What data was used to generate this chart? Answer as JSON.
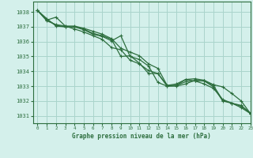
{
  "title": "Graphe pression niveau de la mer (hPa)",
  "bg_color": "#d4f0eb",
  "grid_color": "#aad4cc",
  "line_color": "#2d6e3e",
  "xlim": [
    -0.5,
    23
  ],
  "ylim": [
    1030.5,
    1038.7
  ],
  "yticks": [
    1031,
    1032,
    1033,
    1034,
    1035,
    1036,
    1037,
    1038
  ],
  "xticks": [
    0,
    1,
    2,
    3,
    4,
    5,
    6,
    7,
    8,
    9,
    10,
    11,
    12,
    13,
    14,
    15,
    16,
    17,
    18,
    19,
    20,
    21,
    22,
    23
  ],
  "series": [
    {
      "x": [
        0,
        1,
        2,
        3,
        4,
        5,
        6,
        7,
        8,
        9,
        10,
        11,
        12,
        13,
        14,
        15,
        16,
        17,
        18,
        19,
        20,
        21,
        22,
        23
      ],
      "y": [
        1038.1,
        1037.55,
        1037.05,
        1037.0,
        1037.0,
        1036.8,
        1036.5,
        1036.35,
        1036.05,
        1036.4,
        1035.0,
        1034.8,
        1034.35,
        1033.25,
        1033.0,
        1033.05,
        1033.3,
        1033.35,
        1033.35,
        1033.05,
        1032.05,
        1031.85,
        1031.65,
        1031.2
      ]
    },
    {
      "x": [
        0,
        1,
        2,
        3,
        4,
        5,
        6,
        7,
        8,
        9,
        10,
        11,
        12,
        13,
        14,
        15,
        16,
        17,
        18,
        19,
        20,
        21,
        22,
        23
      ],
      "y": [
        1038.1,
        1037.5,
        1037.1,
        1037.0,
        1037.0,
        1036.85,
        1036.55,
        1036.4,
        1036.15,
        1035.0,
        1035.05,
        1034.55,
        1033.85,
        1033.85,
        1033.0,
        1033.0,
        1033.15,
        1033.4,
        1033.35,
        1032.95,
        1032.0,
        1031.85,
        1031.55,
        1031.15
      ]
    },
    {
      "x": [
        0,
        1,
        2,
        3,
        4,
        5,
        6,
        7,
        8,
        9,
        10,
        11,
        12,
        13,
        14,
        15,
        16,
        17,
        18,
        19,
        20,
        21,
        22,
        23
      ],
      "y": [
        1038.1,
        1037.4,
        1037.15,
        1037.05,
        1036.85,
        1036.65,
        1036.4,
        1036.15,
        1035.6,
        1035.45,
        1034.75,
        1034.5,
        1034.05,
        1033.85,
        1033.05,
        1033.15,
        1033.45,
        1033.35,
        1033.15,
        1032.85,
        1032.1,
        1031.85,
        1031.7,
        1031.15
      ]
    },
    {
      "x": [
        0,
        1,
        2,
        3,
        4,
        5,
        6,
        7,
        8,
        9,
        10,
        11,
        12,
        13,
        14,
        15,
        16,
        17,
        18,
        19,
        20,
        21,
        22,
        23
      ],
      "y": [
        1038.1,
        1037.45,
        1037.65,
        1037.05,
        1037.05,
        1036.9,
        1036.7,
        1036.5,
        1036.2,
        1035.55,
        1035.3,
        1035.05,
        1034.5,
        1034.2,
        1033.05,
        1033.05,
        1033.45,
        1033.5,
        1033.4,
        1033.1,
        1032.95,
        1032.5,
        1032.0,
        1031.15
      ]
    }
  ]
}
